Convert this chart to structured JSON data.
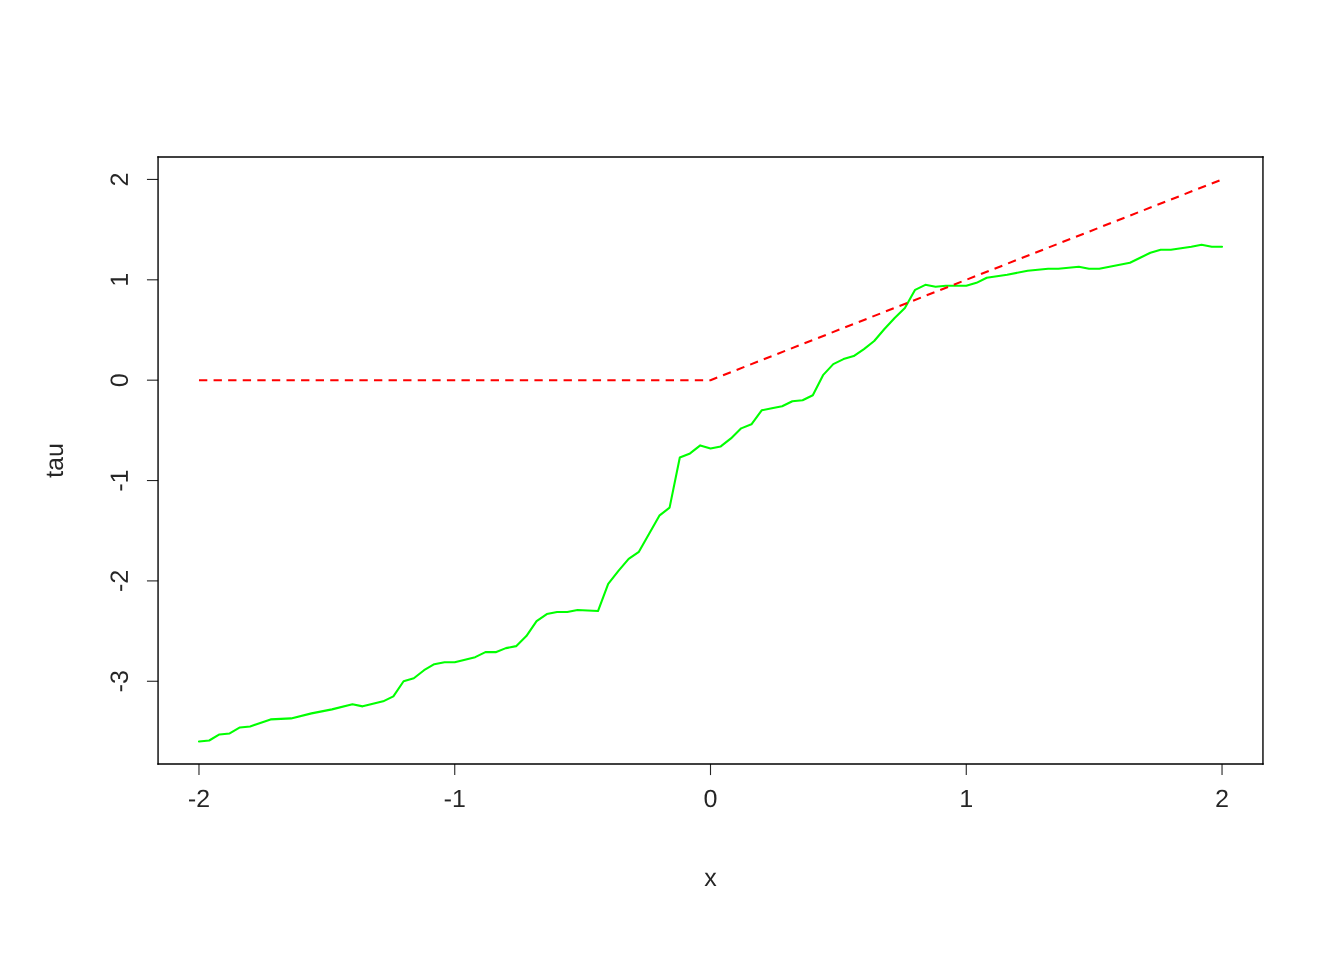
{
  "chart_data": {
    "type": "line",
    "xlabel": "x",
    "ylabel": "tau",
    "xlim": [
      -2.16,
      2.16
    ],
    "ylim": [
      -3.824,
      2.224
    ],
    "xticks": [
      -2,
      -1,
      0,
      1,
      2
    ],
    "yticks": [
      -3,
      -2,
      -1,
      0,
      1,
      2
    ],
    "grid": false,
    "legend": false,
    "series": [
      {
        "color": "#00ff00",
        "line_style": "solid",
        "x": [
          -2,
          -1.96,
          -1.92,
          -1.88,
          -1.84,
          -1.8,
          -1.72,
          -1.64,
          -1.56,
          -1.48,
          -1.4,
          -1.36,
          -1.28,
          -1.24,
          -1.2,
          -1.16,
          -1.12,
          -1.08,
          -1.04,
          -1,
          -0.92,
          -0.88,
          -0.84,
          -0.8,
          -0.76,
          -0.72,
          -0.68,
          -0.64,
          -0.6,
          -0.56,
          -0.52,
          -0.44,
          -0.4,
          -0.36,
          -0.32,
          -0.28,
          -0.24,
          -0.2,
          -0.16,
          -0.12,
          -0.08,
          -0.04,
          0,
          0.04,
          0.08,
          0.12,
          0.16,
          0.2,
          0.24,
          0.28,
          0.32,
          0.36,
          0.4,
          0.44,
          0.48,
          0.52,
          0.56,
          0.6,
          0.64,
          0.68,
          0.72,
          0.76,
          0.8,
          0.84,
          0.88,
          0.92,
          0.96,
          1,
          1.04,
          1.08,
          1.16,
          1.24,
          1.32,
          1.36,
          1.44,
          1.48,
          1.52,
          1.6,
          1.64,
          1.68,
          1.72,
          1.76,
          1.8,
          1.88,
          1.92,
          1.96,
          2
        ],
        "values": [
          -3.6,
          -3.59,
          -3.53,
          -3.52,
          -3.46,
          -3.45,
          -3.38,
          -3.37,
          -3.32,
          -3.28,
          -3.23,
          -3.25,
          -3.2,
          -3.15,
          -3.0,
          -2.97,
          -2.89,
          -2.83,
          -2.81,
          -2.81,
          -2.76,
          -2.71,
          -2.71,
          -2.67,
          -2.65,
          -2.55,
          -2.4,
          -2.33,
          -2.31,
          -2.31,
          -2.29,
          -2.3,
          -2.03,
          -1.9,
          -1.78,
          -1.71,
          -1.53,
          -1.35,
          -1.27,
          -0.77,
          -0.73,
          -0.65,
          -0.68,
          -0.66,
          -0.58,
          -0.48,
          -0.44,
          -0.3,
          -0.28,
          -0.26,
          -0.21,
          -0.2,
          -0.15,
          0.05,
          0.16,
          0.21,
          0.24,
          0.31,
          0.39,
          0.51,
          0.62,
          0.72,
          0.9,
          0.95,
          0.93,
          0.94,
          0.94,
          0.94,
          0.97,
          1.02,
          1.05,
          1.09,
          1.11,
          1.11,
          1.13,
          1.11,
          1.11,
          1.15,
          1.17,
          1.22,
          1.27,
          1.3,
          1.3,
          1.33,
          1.35,
          1.33,
          1.33
        ]
      },
      {
        "color": "#ff0000",
        "line_style": "dashed",
        "x": [
          -2,
          0,
          2
        ],
        "values": [
          0,
          0,
          2
        ]
      }
    ]
  }
}
